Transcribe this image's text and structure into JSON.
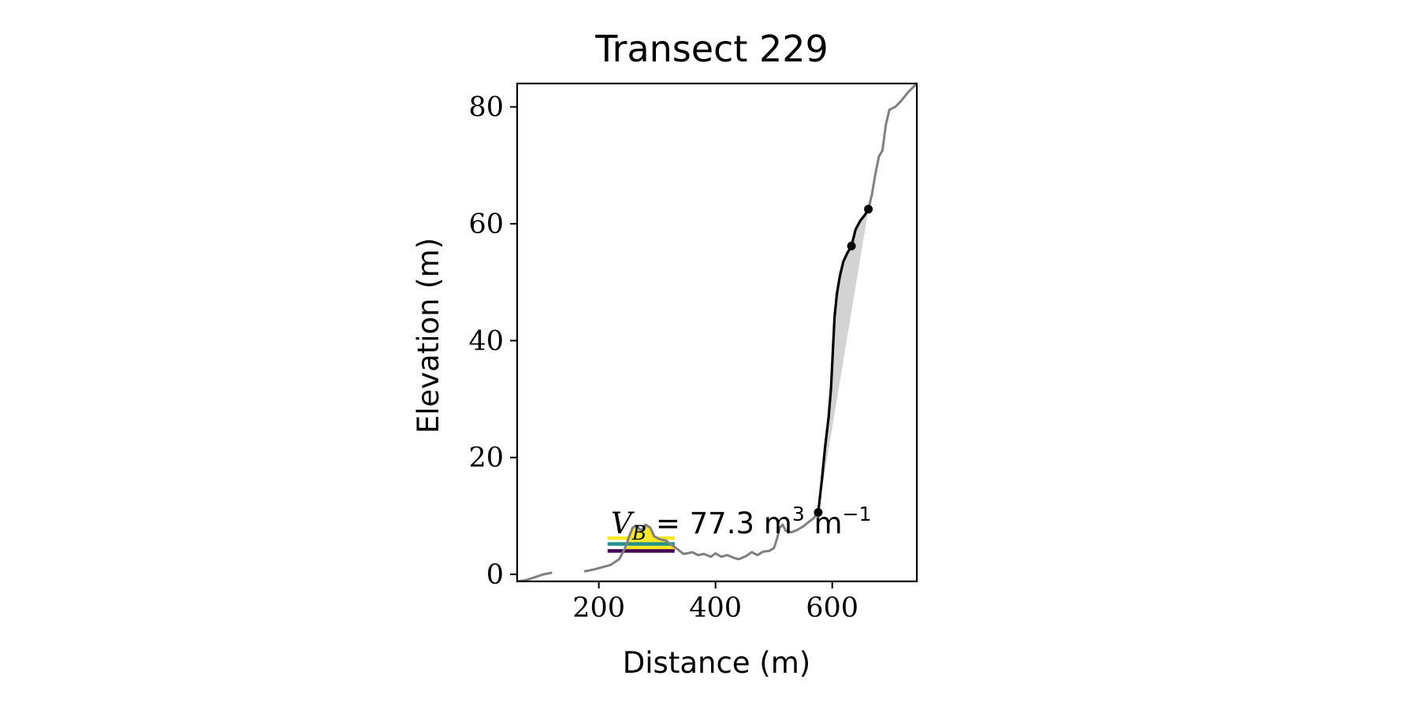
{
  "chart_data": {
    "type": "line",
    "title": "Transect 229",
    "xlabel": "Distance (m)",
    "ylabel": "Elevation (m)",
    "xlim": [
      60,
      745
    ],
    "ylim": [
      -1.2,
      84
    ],
    "xticks": [
      200,
      400,
      600
    ],
    "yticks": [
      0,
      20,
      40,
      60,
      80
    ],
    "grid": false,
    "annotation": {
      "var": "V",
      "sub": "B",
      "eq": " = 77.3 m",
      "exp1": "3",
      "unit2": " m",
      "exp2": "−1"
    },
    "colors": {
      "profile": "#808080",
      "cliff": "#000000",
      "fill": "#d3d3d3",
      "bands": [
        "#440154",
        "#21918c",
        "#fde725"
      ]
    },
    "series": [
      {
        "role": "ground profile",
        "segments": [
          [
            [
              60,
              -1.2
            ],
            [
              75,
              -1.0
            ],
            [
              90,
              -0.5
            ],
            [
              105,
              0.0
            ],
            [
              120,
              0.3
            ]
          ],
          [
            [
              175,
              0.5
            ],
            [
              190,
              0.8
            ],
            [
              205,
              1.2
            ],
            [
              220,
              1.6
            ],
            [
              235,
              2.6
            ],
            [
              245,
              4.5
            ],
            [
              252,
              6.5
            ],
            [
              258,
              8.0
            ],
            [
              265,
              8.3
            ],
            [
              272,
              7.5
            ],
            [
              280,
              8.5
            ],
            [
              288,
              8.0
            ],
            [
              295,
              6.5
            ],
            [
              305,
              6.0
            ],
            [
              315,
              5.8
            ],
            [
              325,
              5.0
            ],
            [
              335,
              4.3
            ],
            [
              345,
              3.5
            ],
            [
              352,
              3.6
            ],
            [
              360,
              3.8
            ],
            [
              370,
              3.3
            ],
            [
              380,
              3.5
            ],
            [
              392,
              3.0
            ],
            [
              400,
              3.6
            ],
            [
              410,
              3.0
            ],
            [
              420,
              3.3
            ],
            [
              432,
              2.8
            ],
            [
              440,
              2.6
            ],
            [
              452,
              3.1
            ],
            [
              462,
              3.8
            ],
            [
              472,
              3.3
            ],
            [
              482,
              3.9
            ],
            [
              492,
              4.0
            ],
            [
              500,
              4.5
            ],
            [
              505,
              6.0
            ],
            [
              510,
              8.0
            ],
            [
              515,
              8.5
            ],
            [
              520,
              7.5
            ],
            [
              530,
              7.2
            ],
            [
              540,
              7.6
            ],
            [
              550,
              8.2
            ],
            [
              560,
              9.0
            ],
            [
              568,
              9.6
            ],
            [
              576,
              10.6
            ]
          ],
          [
            [
              662,
              62.5
            ],
            [
              668,
              65.0
            ],
            [
              674,
              68.5
            ],
            [
              680,
              71.5
            ],
            [
              686,
              72.5
            ],
            [
              692,
              77.0
            ],
            [
              698,
              79.5
            ],
            [
              708,
              80.0
            ],
            [
              718,
              81.0
            ],
            [
              730,
              82.5
            ],
            [
              745,
              84.0
            ]
          ]
        ]
      },
      {
        "role": "cliff profile",
        "points": [
          [
            576,
            10.6
          ],
          [
            582,
            16.0
          ],
          [
            588,
            22.0
          ],
          [
            594,
            27.0
          ],
          [
            598,
            32.0
          ],
          [
            601,
            38.0
          ],
          [
            604,
            44.0
          ],
          [
            608,
            48.0
          ],
          [
            613,
            51.0
          ],
          [
            619,
            53.5
          ],
          [
            626,
            55.0
          ],
          [
            633,
            56.2
          ],
          [
            640,
            59.0
          ],
          [
            648,
            60.5
          ],
          [
            656,
            61.5
          ],
          [
            662,
            62.5
          ]
        ]
      }
    ],
    "markers": [
      [
        576,
        10.6
      ],
      [
        633,
        56.2
      ],
      [
        662,
        62.5
      ]
    ],
    "shaded_region": {
      "from": [
        576,
        10.6
      ],
      "to": [
        662,
        62.5
      ]
    },
    "bands": [
      {
        "color": "#440154",
        "x": [
          215,
          330
        ],
        "y": 4.0
      },
      {
        "color": "#21918c",
        "x": [
          215,
          330
        ],
        "y": 5.2
      },
      {
        "color": "#fde725",
        "x": [
          215,
          330
        ],
        "y": 6.2
      }
    ],
    "deposit_fill": {
      "points": [
        [
          240,
          4.0
        ],
        [
          245,
          4.5
        ],
        [
          252,
          6.5
        ],
        [
          258,
          8.0
        ],
        [
          265,
          8.3
        ],
        [
          272,
          7.5
        ],
        [
          280,
          8.5
        ],
        [
          288,
          8.0
        ],
        [
          295,
          6.5
        ],
        [
          305,
          6.0
        ],
        [
          315,
          5.8
        ],
        [
          325,
          5.0
        ],
        [
          330,
          4.6
        ],
        [
          330,
          4.0
        ]
      ]
    }
  }
}
